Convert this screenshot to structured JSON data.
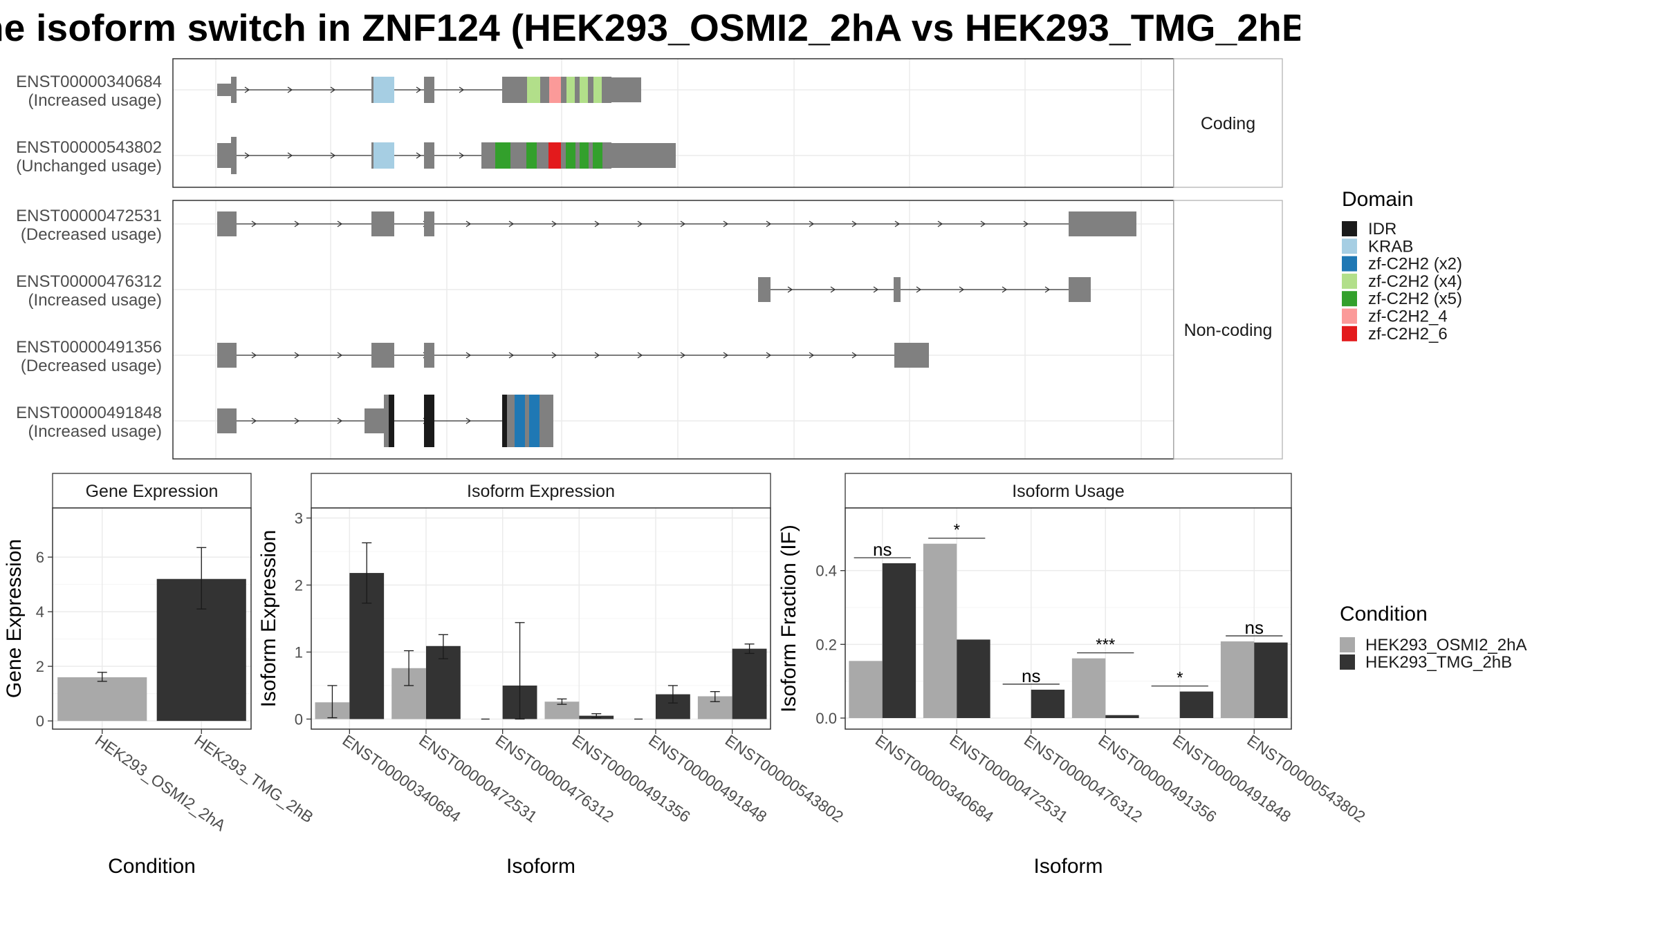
{
  "title": "he isoform switch in ZNF124 (HEK293_OSMI2_2hA vs HEK293_TMG_2hB",
  "colors": {
    "exon": "#808080",
    "IDR": "#1a1a1a",
    "KRAB": "#a6cee3",
    "zf-C2H2 (x2)": "#1f78b4",
    "zf-C2H2 (x4)": "#b2df8a",
    "zf-C2H2 (x5)": "#33a02c",
    "zf-C2H2_4": "#fb9a99",
    "zf-C2H2_6": "#e31a1c",
    "cond_a": "#a9a9a9",
    "cond_b": "#333333"
  },
  "chart_data": [
    {
      "type": "transcript_structure",
      "facets": [
        "Coding",
        "Non-coding"
      ],
      "transcripts": [
        {
          "id": "ENST00000340684",
          "label": "(Increased usage)",
          "facet": "Coding"
        },
        {
          "id": "ENST00000543802",
          "label": "(Unchanged usage)",
          "facet": "Coding"
        },
        {
          "id": "ENST00000472531",
          "label": "(Decreased usage)",
          "facet": "Non-coding"
        },
        {
          "id": "ENST00000476312",
          "label": "(Increased usage)",
          "facet": "Non-coding"
        },
        {
          "id": "ENST00000491356",
          "label": "(Decreased usage)",
          "facet": "Non-coding"
        },
        {
          "id": "ENST00000491848",
          "label": "(Increased usage)",
          "facet": "Non-coding"
        }
      ],
      "legend": {
        "title": "Domain",
        "items": [
          "IDR",
          "KRAB",
          "zf-C2H2 (x2)",
          "zf-C2H2 (x4)",
          "zf-C2H2 (x5)",
          "zf-C2H2_4",
          "zf-C2H2_6"
        ]
      }
    },
    {
      "type": "bar",
      "title": "Gene Expression",
      "xlabel": "Condition",
      "ylabel": "Gene Expression",
      "categories": [
        "HEK293_OSMI2_2hA",
        "HEK293_TMG_2hB"
      ],
      "values": [
        1.6,
        5.2
      ],
      "error_low": [
        1.45,
        4.1
      ],
      "error_high": [
        1.78,
        6.35
      ],
      "yticks": [
        0,
        2,
        4,
        6
      ],
      "ylim": [
        -0.3,
        7.8
      ]
    },
    {
      "type": "bar",
      "title": "Isoform Expression",
      "xlabel": "Isoform",
      "ylabel": "Isoform Expression",
      "categories": [
        "ENST00000340684",
        "ENST00000472531",
        "ENST00000476312",
        "ENST00000491356",
        "ENST00000491848",
        "ENST00000543802"
      ],
      "series": [
        {
          "name": "HEK293_OSMI2_2hA",
          "values": [
            0.25,
            0.76,
            0.0,
            0.26,
            0.0,
            0.34
          ],
          "error_low": [
            0.02,
            0.5,
            0.0,
            0.22,
            0.0,
            0.26
          ],
          "error_high": [
            0.5,
            1.02,
            0.0,
            0.3,
            0.0,
            0.41
          ]
        },
        {
          "name": "HEK293_TMG_2hB",
          "values": [
            2.18,
            1.09,
            0.5,
            0.05,
            0.37,
            1.05
          ],
          "error_low": [
            1.73,
            0.9,
            0.0,
            0.02,
            0.24,
            0.98
          ],
          "error_high": [
            2.63,
            1.26,
            1.44,
            0.08,
            0.5,
            1.12
          ]
        }
      ],
      "yticks": [
        0,
        1,
        2,
        3
      ],
      "ylim": [
        -0.15,
        3.15
      ]
    },
    {
      "type": "bar",
      "title": "Isoform Usage",
      "xlabel": "Isoform",
      "ylabel": "Isoform Fraction (IF)",
      "categories": [
        "ENST00000340684",
        "ENST00000472531",
        "ENST00000476312",
        "ENST00000491356",
        "ENST00000491848",
        "ENST00000543802"
      ],
      "series": [
        {
          "name": "HEK293_OSMI2_2hA",
          "values": [
            0.155,
            0.473,
            0.0,
            0.162,
            0.0,
            0.208
          ]
        },
        {
          "name": "HEK293_TMG_2hB",
          "values": [
            0.42,
            0.213,
            0.077,
            0.008,
            0.072,
            0.205
          ]
        }
      ],
      "annotations": [
        "ns",
        "*",
        "ns",
        "***",
        "*",
        "ns"
      ],
      "yticks": [
        "0.0",
        "0.2",
        "0.4"
      ],
      "ylim": [
        -0.03,
        0.57
      ]
    }
  ],
  "condition_legend": {
    "title": "Condition",
    "items": [
      "HEK293_OSMI2_2hA",
      "HEK293_TMG_2hB"
    ]
  }
}
